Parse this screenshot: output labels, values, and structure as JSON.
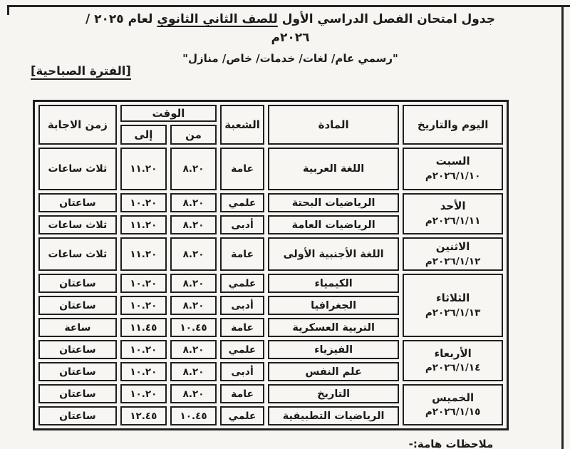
{
  "page": {
    "title": {
      "part1": "جدول امتحان الفصل الدراسي الأول ",
      "underlined": "للصف الثاني الثانوي",
      "part2": " لعام ٢٠٢٥ / ٢٠٢٦م"
    },
    "subtitle": "\"رسمي عام/ لغات/ خدمات/ خاص/ منازل\"",
    "section_label": "[الفترة الصباحية]",
    "footer_note": "ملاحظات هامة:-"
  },
  "table": {
    "headers": {
      "day_date": "اليوم والتاريخ",
      "subject": "المادة",
      "branch": "الشعبة",
      "time": "الوقت",
      "from": "من",
      "to": "إلى",
      "duration": "زمن الاجابة"
    },
    "days": [
      {
        "name": "السبت",
        "date": "٢٠٢٦/١/١٠م",
        "rows": [
          {
            "subject": "اللغة العربية",
            "branch": "عامة",
            "from": "٨.٢٠",
            "to": "١١.٢٠",
            "duration": "ثلاث ساعات",
            "size": "lg"
          }
        ]
      },
      {
        "name": "الأحد",
        "date": "٢٠٢٦/١/١١م",
        "rows": [
          {
            "subject": "الرياضيات البحتة",
            "branch": "علمي",
            "from": "٨.٢٠",
            "to": "١٠.٢٠",
            "duration": "ساعتان"
          },
          {
            "subject": "الرياضيات العامة",
            "branch": "أدبى",
            "from": "٨.٢٠",
            "to": "١١.٢٠",
            "duration": "ثلاث ساعات"
          }
        ]
      },
      {
        "name": "الاثنين",
        "date": "٢٠٢٦/١/١٢م",
        "rows": [
          {
            "subject": "اللغة الأجنبية الأولى",
            "branch": "عامة",
            "from": "٨.٢٠",
            "to": "١١.٢٠",
            "duration": "ثلاث ساعات",
            "size": "md"
          }
        ]
      },
      {
        "name": "الثلاثاء",
        "date": "٢٠٢٦/١/١٣م",
        "rows": [
          {
            "subject": "الكيمياء",
            "branch": "علمي",
            "from": "٨.٢٠",
            "to": "١٠.٢٠",
            "duration": "ساعتان"
          },
          {
            "subject": "الجغرافيا",
            "branch": "أدبى",
            "from": "٨.٢٠",
            "to": "١٠.٢٠",
            "duration": "ساعتان"
          },
          {
            "subject": "التربية العسكرية",
            "branch": "عامة",
            "from": "١٠.٤٥",
            "to": "١١.٤٥",
            "duration": "ساعة"
          }
        ]
      },
      {
        "name": "الأربعاء",
        "date": "٢٠٢٦/١/١٤م",
        "rows": [
          {
            "subject": "الفيزياء",
            "branch": "علمي",
            "from": "٨.٢٠",
            "to": "١٠.٢٠",
            "duration": "ساعتان"
          },
          {
            "subject": "علم النفس",
            "branch": "أدبى",
            "from": "٨.٢٠",
            "to": "١٠.٢٠",
            "duration": "ساعتان"
          }
        ]
      },
      {
        "name": "الخميس",
        "date": "٢٠٢٦/١/١٥م",
        "rows": [
          {
            "subject": "التاريخ",
            "branch": "عامة",
            "from": "٨.٢٠",
            "to": "١٠.٢٠",
            "duration": "ساعتان"
          },
          {
            "subject": "الرياضيات التطبيقية",
            "branch": "علمي",
            "from": "١٠.٤٥",
            "to": "١٢.٤٥",
            "duration": "ساعتان"
          }
        ]
      }
    ]
  },
  "colors": {
    "ink": "#1f1f1f",
    "paper": "#f6f5f1"
  }
}
